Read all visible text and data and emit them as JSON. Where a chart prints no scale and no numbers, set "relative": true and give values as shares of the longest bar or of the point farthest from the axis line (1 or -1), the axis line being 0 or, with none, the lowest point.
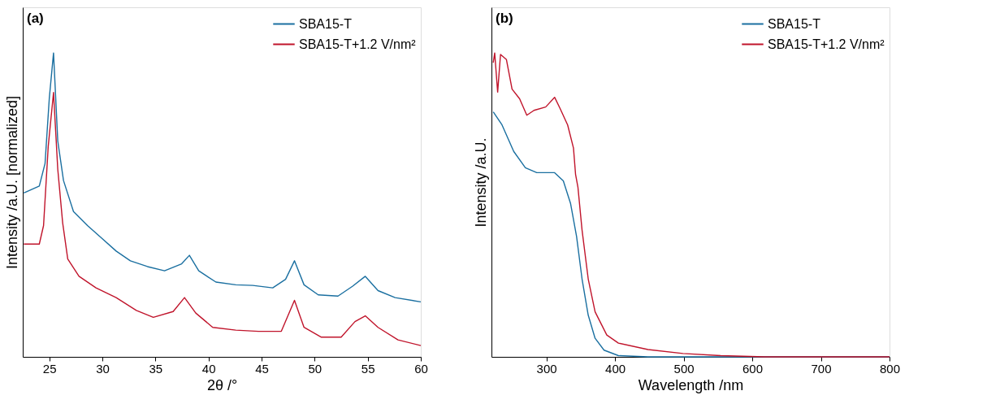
{
  "chart_data": [
    {
      "type": "line",
      "relative": true,
      "xlabel": "2θ /°",
      "ylabel": "Intensity /a.U. [normalized]",
      "annotations": [
        "(a)"
      ],
      "xlim": [
        22.5,
        60
      ],
      "xticks": [
        25,
        30,
        35,
        40,
        45,
        50,
        55,
        60
      ],
      "grid": false,
      "legend": "top right",
      "marker": "none",
      "line_style": "solid",
      "series": [
        {
          "name": "SBA15-T",
          "color": "#1a6fa0",
          "x": [
            22.6,
            24.06,
            24.6,
            25.0,
            25.4,
            25.8,
            26.34,
            27.28,
            28.6,
            29.96,
            31.3,
            32.64,
            34.25,
            35.86,
            37.47,
            38.2,
            39.08,
            40.7,
            42.57,
            44.17,
            46.05,
            47.26,
            48.1,
            49.0,
            50.34,
            52.2,
            53.56,
            54.77,
            55.97,
            57.58,
            60
          ],
          "values": [
            0.539,
            0.562,
            0.636,
            0.85,
            1.0,
            0.71,
            0.58,
            0.478,
            0.432,
            0.39,
            0.348,
            0.316,
            0.297,
            0.283,
            0.306,
            0.334,
            0.283,
            0.246,
            0.237,
            0.235,
            0.227,
            0.255,
            0.316,
            0.237,
            0.204,
            0.2,
            0.232,
            0.265,
            0.218,
            0.195,
            0.181
          ]
        },
        {
          "name": "SBA15-T+1.2 V/nm²",
          "color": "#c0142b",
          "x": [
            22.6,
            24.06,
            24.46,
            24.9,
            25.4,
            25.8,
            26.26,
            26.74,
            27.8,
            29.4,
            31.3,
            33.2,
            34.8,
            36.67,
            37.74,
            38.8,
            40.4,
            42.57,
            44.7,
            46.86,
            48.1,
            49.0,
            50.6,
            52.5,
            53.8,
            54.77,
            55.97,
            57.85,
            60
          ],
          "values": [
            0.371,
            0.371,
            0.432,
            0.692,
            0.87,
            0.617,
            0.441,
            0.322,
            0.265,
            0.227,
            0.195,
            0.153,
            0.13,
            0.149,
            0.195,
            0.144,
            0.097,
            0.088,
            0.084,
            0.084,
            0.186,
            0.097,
            0.065,
            0.065,
            0.116,
            0.135,
            0.097,
            0.056,
            0.037
          ]
        }
      ]
    },
    {
      "type": "line",
      "relative": true,
      "xlabel": "Wavelength /nm",
      "ylabel": "Intensity /a.U.",
      "annotations": [
        "(b)"
      ],
      "xlim": [
        220,
        800
      ],
      "xticks": [
        300,
        400,
        500,
        600,
        700,
        800
      ],
      "grid": false,
      "legend": "top right",
      "marker": "none",
      "line_style": "solid",
      "series": [
        {
          "name": "SBA15-T",
          "color": "#1a6fa0",
          "x": [
            222.6,
            235.4,
            252.4,
            269.4,
            286,
            312,
            324.7,
            335.3,
            344,
            352,
            361,
            371,
            384,
            405,
            448,
            800
          ],
          "values": [
            0.806,
            0.763,
            0.676,
            0.622,
            0.606,
            0.606,
            0.579,
            0.504,
            0.396,
            0.256,
            0.137,
            0.061,
            0.022,
            0.004,
            0,
            0
          ]
        },
        {
          "name": "SBA15-T+1.2 V/nm²",
          "color": "#c0142b",
          "x": [
            222.6,
            224.7,
            229,
            233.2,
            241.8,
            250,
            261,
            271.5,
            282,
            299,
            312,
            320,
            331,
            339.5,
            342.5,
            346,
            352,
            361,
            371,
            388,
            405,
            448,
            499,
            554,
            618,
            800
          ],
          "values": [
            0.968,
            1.0,
            0.871,
            0.995,
            0.978,
            0.881,
            0.849,
            0.795,
            0.811,
            0.822,
            0.854,
            0.817,
            0.763,
            0.687,
            0.601,
            0.558,
            0.417,
            0.256,
            0.148,
            0.072,
            0.045,
            0.024,
            0.011,
            0.004,
            0,
            0
          ]
        }
      ]
    }
  ]
}
